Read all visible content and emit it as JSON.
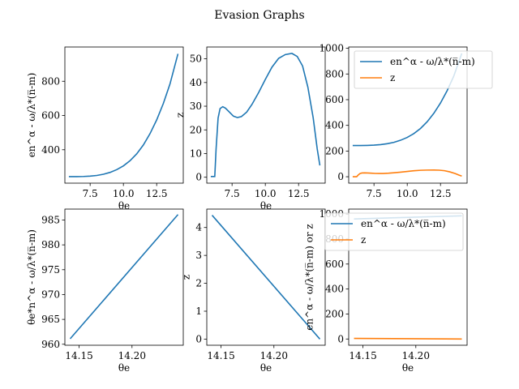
{
  "figure": {
    "title": "Evasion Graphs"
  },
  "colors": {
    "blue": "#1f77b4",
    "orange": "#ff7f0e"
  },
  "chart_data": [
    {
      "id": "top-left",
      "type": "line",
      "xlabel": "θe",
      "ylabel": "en^α - ω/λ*(n̅-m)",
      "xlim": [
        5.6,
        14.5
      ],
      "ylim": [
        205,
        1000
      ],
      "xticks": [
        7.5,
        10.0,
        12.5
      ],
      "xticklabels": [
        "7.5",
        "10.0",
        "12.5"
      ],
      "yticks": [
        400,
        600,
        800
      ],
      "yticklabels": [
        "400",
        "600",
        "800"
      ],
      "series": [
        {
          "color": "blue",
          "x": [
            5.9,
            6.5,
            7.0,
            7.5,
            8.0,
            8.5,
            9.0,
            9.5,
            10.0,
            10.5,
            11.0,
            11.5,
            12.0,
            12.5,
            13.0,
            13.5,
            14.1
          ],
          "y": [
            243,
            243,
            244,
            246,
            250,
            257,
            268,
            284,
            306,
            336,
            376,
            428,
            494,
            574,
            670,
            784,
            960
          ]
        }
      ]
    },
    {
      "id": "top-middle",
      "type": "line",
      "xlabel": "θe",
      "ylabel": "z",
      "xlim": [
        5.6,
        14.5
      ],
      "ylim": [
        -2.5,
        55
      ],
      "xticks": [
        7.5,
        10.0,
        12.5
      ],
      "xticklabels": [
        "7.5",
        "10.0",
        "12.5"
      ],
      "yticks": [
        0,
        10,
        20,
        30,
        40,
        50
      ],
      "yticklabels": [
        "0",
        "10",
        "20",
        "30",
        "40",
        "50"
      ],
      "series": [
        {
          "color": "blue",
          "x": [
            5.9,
            6.2,
            6.3,
            6.45,
            6.6,
            6.8,
            7.0,
            7.3,
            7.6,
            7.9,
            8.2,
            8.6,
            9.0,
            9.5,
            10.0,
            10.5,
            11.0,
            11.5,
            12.0,
            12.4,
            12.8,
            13.2,
            13.6,
            13.9,
            14.1
          ],
          "y": [
            0.3,
            0.3,
            12,
            25,
            29,
            29.8,
            29.2,
            27.5,
            25.8,
            25.2,
            25.6,
            27.5,
            30.8,
            35.8,
            41.3,
            46.5,
            50.2,
            51.8,
            52.3,
            51,
            47,
            38,
            25,
            12,
            5
          ]
        }
      ]
    },
    {
      "id": "top-right",
      "type": "line",
      "xlabel": "",
      "ylabel": "",
      "xlim": [
        5.6,
        14.5
      ],
      "ylim": [
        -50,
        1010
      ],
      "xticks": [
        7.5,
        10.0,
        12.5
      ],
      "xticklabels": [
        "7.5",
        "10.0",
        "12.5"
      ],
      "yticks": [
        0,
        200,
        400,
        600,
        800,
        1000
      ],
      "yticklabels": [
        "0",
        "200",
        "400",
        "600",
        "800",
        "1000"
      ],
      "legend": "top-right",
      "series": [
        {
          "name": "en^α - ω/λ*(n̅-m)",
          "color": "blue",
          "x": [
            5.9,
            6.5,
            7.0,
            7.5,
            8.0,
            8.5,
            9.0,
            9.5,
            10.0,
            10.5,
            11.0,
            11.5,
            12.0,
            12.5,
            13.0,
            13.5,
            14.1
          ],
          "y": [
            243,
            243,
            244,
            246,
            250,
            257,
            268,
            284,
            306,
            336,
            376,
            428,
            494,
            574,
            670,
            784,
            960
          ]
        },
        {
          "name": "z",
          "color": "orange",
          "x": [
            5.9,
            6.2,
            6.3,
            6.45,
            6.6,
            6.8,
            7.0,
            7.3,
            7.6,
            7.9,
            8.2,
            8.6,
            9.0,
            9.5,
            10.0,
            10.5,
            11.0,
            11.5,
            12.0,
            12.4,
            12.8,
            13.2,
            13.6,
            13.9,
            14.1
          ],
          "y": [
            0.3,
            0.3,
            12,
            25,
            29,
            29.8,
            29.2,
            27.5,
            25.8,
            25.2,
            25.6,
            27.5,
            30.8,
            35.8,
            41.3,
            46.5,
            50.2,
            51.8,
            52.3,
            51,
            47,
            38,
            25,
            12,
            5
          ]
        }
      ]
    },
    {
      "id": "bottom-left",
      "type": "line",
      "xlabel": "θe",
      "ylabel": "θe*n^α - ω/λ*(n̅-m)",
      "xlim": [
        14.1365,
        14.2485
      ],
      "ylim": [
        959.8,
        987.2
      ],
      "xticks": [
        14.15,
        14.2
      ],
      "xticklabels": [
        "14.15",
        "14.20"
      ],
      "yticks": [
        960,
        965,
        970,
        975,
        980,
        985
      ],
      "yticklabels": [
        "960",
        "965",
        "970",
        "975",
        "980",
        "985"
      ],
      "series": [
        {
          "color": "blue",
          "x": [
            14.1415,
            14.2435
          ],
          "y": [
            961.1,
            986.1
          ]
        }
      ]
    },
    {
      "id": "bottom-middle",
      "type": "line",
      "xlabel": "θe",
      "ylabel": "z",
      "xlim": [
        14.1365,
        14.2485
      ],
      "ylim": [
        -0.22,
        4.66
      ],
      "xticks": [
        14.15,
        14.2
      ],
      "xticklabels": [
        "14.15",
        "14.20"
      ],
      "yticks": [
        0,
        1,
        2,
        3,
        4
      ],
      "yticklabels": [
        "0",
        "1",
        "2",
        "3",
        "4"
      ],
      "series": [
        {
          "color": "blue",
          "x": [
            14.1415,
            14.2435
          ],
          "y": [
            4.44,
            0.0
          ]
        }
      ]
    },
    {
      "id": "bottom-right",
      "type": "line",
      "xlabel": "θe",
      "ylabel": "en^α - ω/λ*(n̅-m) or z",
      "xlim": [
        14.1365,
        14.2485
      ],
      "ylim": [
        -50,
        1040
      ],
      "xticks": [
        14.15,
        14.2
      ],
      "xticklabels": [
        "14.15",
        "14.20"
      ],
      "yticks": [
        0,
        200,
        400,
        600,
        800,
        1000
      ],
      "yticklabels": [
        "0",
        "200",
        "400",
        "600",
        "800",
        "1000"
      ],
      "legend": "top-left",
      "series": [
        {
          "name": "en^α - ω/λ*(n̅-m)",
          "color": "blue",
          "x": [
            14.1415,
            14.2435
          ],
          "y": [
            961.1,
            986.1
          ]
        },
        {
          "name": "z",
          "color": "orange",
          "x": [
            14.1415,
            14.2435
          ],
          "y": [
            4.44,
            0.0
          ]
        }
      ]
    }
  ]
}
